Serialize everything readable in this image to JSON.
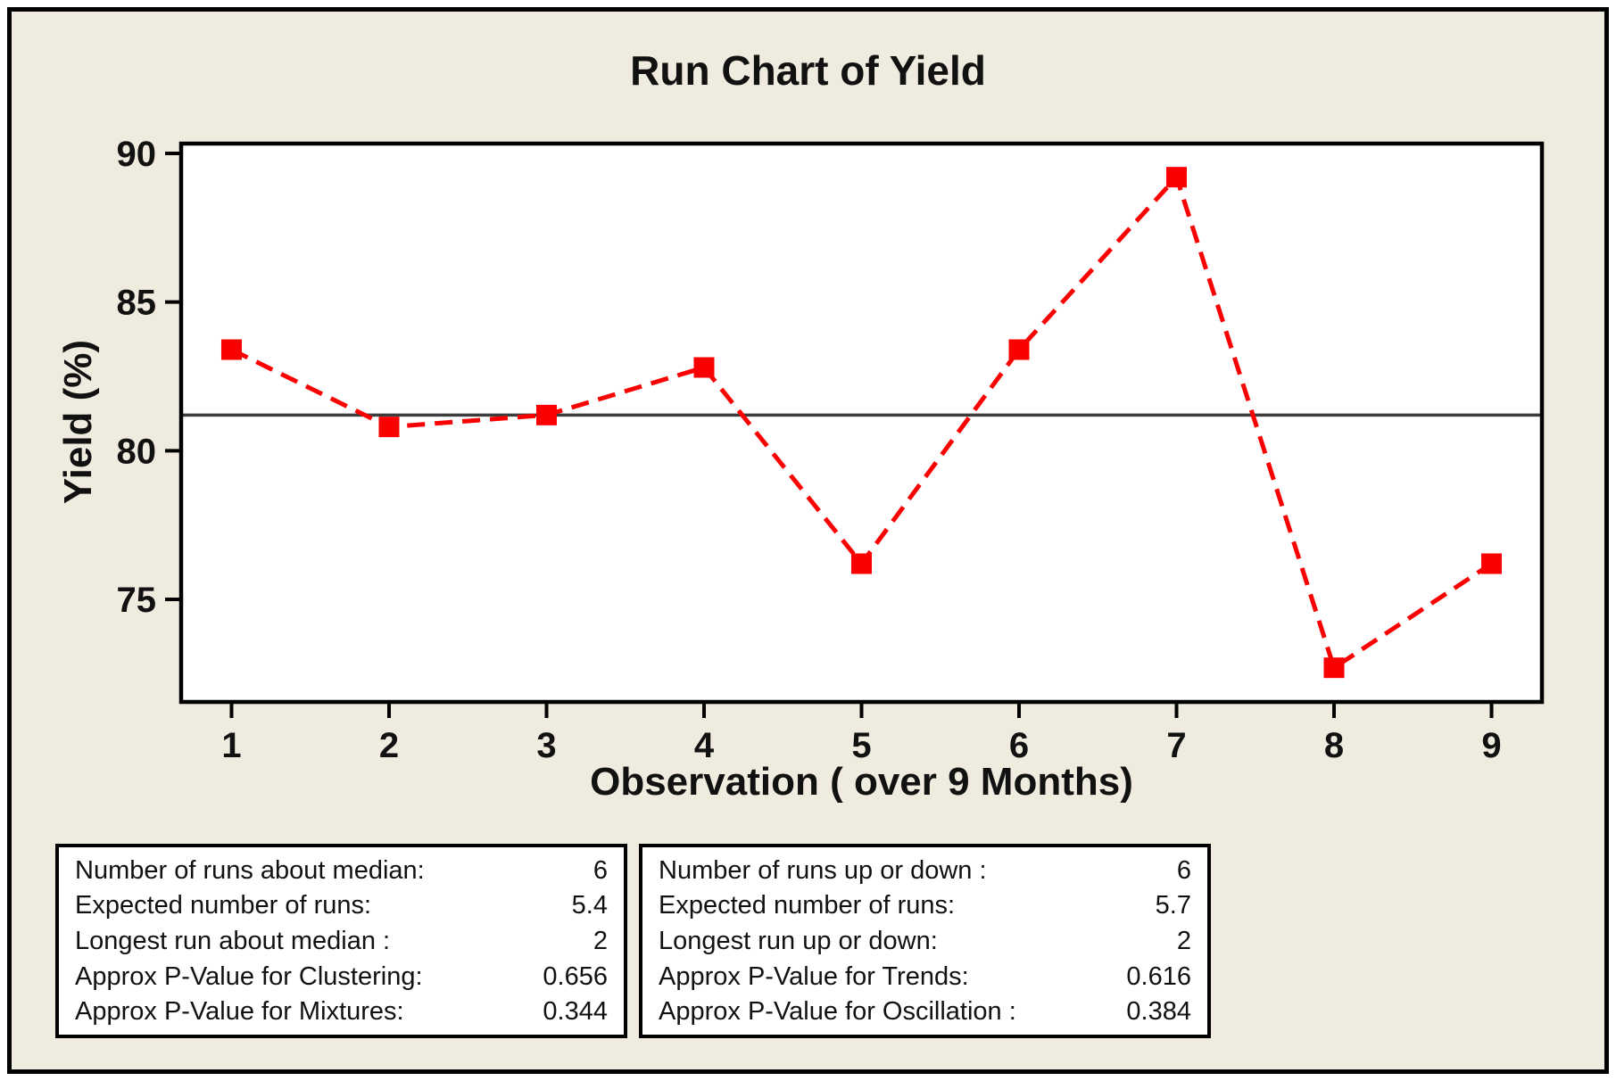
{
  "chart_data": {
    "type": "line",
    "title": "Run Chart of Yield",
    "xlabel": "Observation ( over 9 Months)",
    "ylabel": "Yield (%)",
    "x": [
      1,
      2,
      3,
      4,
      5,
      6,
      7,
      8,
      9
    ],
    "values": [
      83.4,
      80.8,
      81.2,
      82.8,
      76.2,
      83.4,
      89.2,
      72.7,
      76.2
    ],
    "median": 81.2,
    "xticks": [
      1,
      2,
      3,
      4,
      5,
      6,
      7,
      8,
      9
    ],
    "yticks": [
      75,
      80,
      85,
      90
    ],
    "xlim": [
      0.68,
      9.32
    ],
    "ylim": [
      71.55,
      90.33
    ],
    "grid": false,
    "legend": "none",
    "line_style": "dashed",
    "marker": "square",
    "colors": {
      "series": "#fa0000",
      "median_line": "#3d3d3d",
      "frame": "#000000",
      "tick_text": "#111111",
      "plot_bg": "#ffffff",
      "canvas_bg": "#efebde"
    }
  },
  "stats": {
    "left": {
      "rows": [
        {
          "label": "Number of runs about median:",
          "value": "6"
        },
        {
          "label": "Expected number of runs:",
          "value": "5.4"
        },
        {
          "label": "Longest run about median :",
          "value": "2"
        },
        {
          "label": "Approx P-Value for Clustering:",
          "value": "0.656"
        },
        {
          "label": "Approx P-Value for Mixtures:",
          "value": "0.344"
        }
      ]
    },
    "right": {
      "rows": [
        {
          "label": "Number of runs up or down :",
          "value": "6"
        },
        {
          "label": "Expected number of runs:",
          "value": "5.7"
        },
        {
          "label": "Longest run up or down:",
          "value": "2"
        },
        {
          "label": "Approx P-Value for Trends:",
          "value": "0.616"
        },
        {
          "label": "Approx P-Value for Oscillation :",
          "value": "0.384"
        }
      ]
    }
  }
}
